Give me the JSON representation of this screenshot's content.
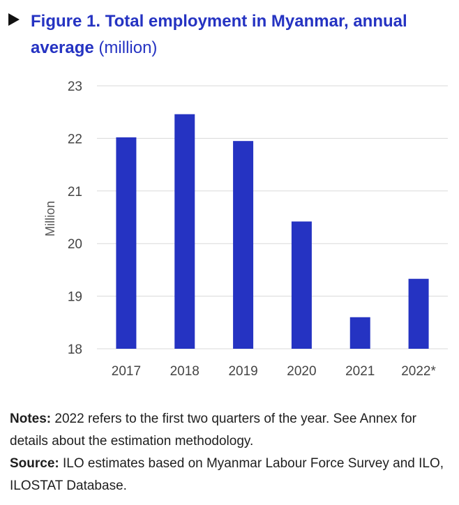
{
  "figure": {
    "title_bold": "Figure 1. Total employment in Myanmar, annual average",
    "title_unit": "(million)"
  },
  "chart_data": {
    "type": "bar",
    "categories": [
      "2017",
      "2018",
      "2019",
      "2020",
      "2021",
      "2022*"
    ],
    "series": [
      {
        "values": [
          22.02,
          22.46,
          21.95,
          20.42,
          18.6,
          19.33
        ]
      }
    ],
    "ylabel": "Million",
    "ylim": [
      18,
      23
    ],
    "yticks": [
      "18",
      "19",
      "20",
      "21",
      "22",
      "23"
    ],
    "grid": true,
    "bar_color": "#2533c2",
    "grid_color": "#d9d9d9"
  },
  "notes": {
    "notes_label": "Notes:",
    "notes_text": "2022 refers to the first two quarters of the year. See Annex for details about the estimation methodology.",
    "source_label": "Source:",
    "source_text": "ILO estimates based on Myanmar Labour Force Survey and ILO, ILOSTAT Database."
  }
}
